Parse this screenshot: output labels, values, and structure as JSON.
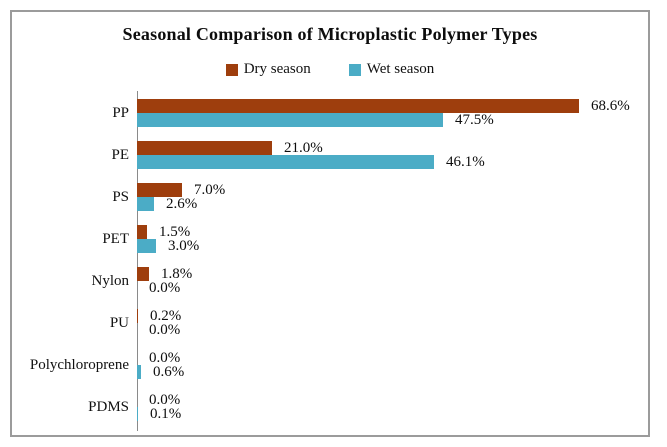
{
  "chart_data": {
    "type": "bar",
    "orientation": "horizontal",
    "title": "Seasonal Comparison of Microplastic Polymer Types",
    "categories": [
      "PP",
      "PE",
      "PS",
      "PET",
      "Nylon",
      "PU",
      "Polychloroprene",
      "PDMS"
    ],
    "series": [
      {
        "name": "Dry season",
        "color": "#9E3E0D",
        "values": [
          68.6,
          21.0,
          7.0,
          1.5,
          1.8,
          0.2,
          0.0,
          0.0
        ],
        "labels": [
          "68.6%",
          "21.0%",
          "7.0%",
          "1.5%",
          "1.8%",
          "0.2%",
          "0.0%",
          "0.0%"
        ]
      },
      {
        "name": "Wet season",
        "color": "#4BACC6",
        "values": [
          47.5,
          46.1,
          2.6,
          3.0,
          0.0,
          0.0,
          0.6,
          0.1
        ],
        "labels": [
          "47.5%",
          "46.1%",
          "2.6%",
          "3.0%",
          "0.0%",
          "0.0%",
          "0.6%",
          "0.1%"
        ]
      }
    ],
    "value_label_format": "0.0%",
    "legend_position": "top",
    "grid": false,
    "axis_color": "#8a8a8a",
    "xlim": [
      0,
      80
    ]
  }
}
